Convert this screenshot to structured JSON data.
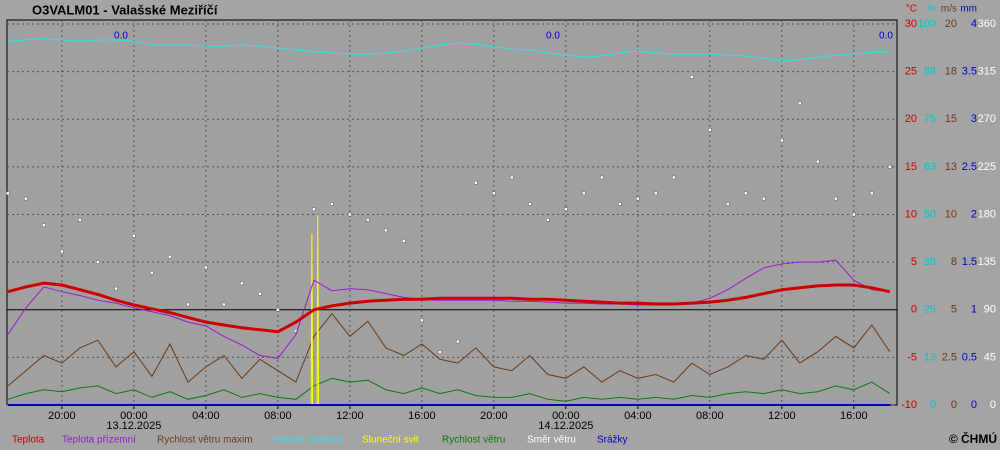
{
  "chart_data": {
    "type": "line",
    "title": "O3VALM01 - Valašské Meziříčí",
    "credit": "© ČHMÚ",
    "annotations": [
      "0.0",
      "0.0",
      "0.0"
    ],
    "grid": true,
    "xlim": [
      -7.05,
      42.4
    ],
    "xticks": [
      {
        "value": -4,
        "label": "20:00"
      },
      {
        "value": 0,
        "label": "00:00"
      },
      {
        "value": 4,
        "label": "04:00"
      },
      {
        "value": 8,
        "label": "08:00"
      },
      {
        "value": 12,
        "label": "12:00"
      },
      {
        "value": 16,
        "label": "16:00"
      },
      {
        "value": 20,
        "label": "20:00"
      },
      {
        "value": 24,
        "label": "00:00"
      },
      {
        "value": 28,
        "label": "04:00"
      },
      {
        "value": 32,
        "label": "08:00"
      },
      {
        "value": 36,
        "label": "12:00"
      },
      {
        "value": 40,
        "label": "16:00"
      }
    ],
    "xdates": [
      {
        "value": 0,
        "label": "13.12.2025"
      },
      {
        "value": 24,
        "label": "14.12.2025"
      }
    ],
    "ylim": [
      -10,
      30
    ],
    "y_label": "°C",
    "y_color": "#cc0000",
    "yticks": [
      -10,
      -5,
      0,
      5,
      10,
      15,
      20,
      25,
      30
    ],
    "y2lim": [
      0,
      100
    ],
    "y2_label": "%",
    "y2_color": "#00c8c8",
    "y2ticks": [
      0,
      {
        "value": 12.5,
        "label": "13"
      },
      25,
      {
        "value": 37.5,
        "label": "38"
      },
      50,
      {
        "value": 62.5,
        "label": "63"
      },
      75,
      {
        "value": 87.5,
        "label": "88"
      },
      100
    ],
    "y3lim": [
      0,
      20
    ],
    "y3_label": "m/s",
    "y3_color": "#6b3a1a",
    "y3ticks": [
      0,
      2.5,
      5,
      {
        "value": 7.5,
        "label": "8"
      },
      10,
      {
        "value": 12.5,
        "label": "13"
      },
      15,
      {
        "value": 17.5,
        "label": "18"
      },
      20
    ],
    "y4lim": [
      0,
      4
    ],
    "y4_label": "mm",
    "y4_color": "#0000cc",
    "y4ticks": [
      0,
      0.5,
      1,
      1.5,
      2,
      2.5,
      3,
      3.5,
      4
    ],
    "y5lim": [
      0,
      360
    ],
    "y5_color": "#ffffff",
    "y5ticks": [
      0,
      45,
      90,
      135,
      180,
      225,
      270,
      315,
      360
    ],
    "x": [
      -7,
      -6,
      -5,
      -4,
      -3,
      -2,
      -1,
      0,
      1,
      2,
      3,
      4,
      5,
      6,
      7,
      8,
      9,
      10,
      11,
      12,
      13,
      14,
      15,
      16,
      17,
      18,
      19,
      20,
      21,
      22,
      23,
      24,
      25,
      26,
      27,
      28,
      29,
      30,
      31,
      32,
      33,
      34,
      35,
      36,
      37,
      38,
      39,
      40,
      41,
      42
    ],
    "series": [
      {
        "name": "Teplota",
        "color": "#cc0000",
        "axis": "y",
        "width": 3,
        "values": [
          1.9,
          2.4,
          2.8,
          2.6,
          2.1,
          1.6,
          1.0,
          0.5,
          0.1,
          -0.3,
          -0.8,
          -1.3,
          -1.6,
          -1.9,
          -2.1,
          -2.3,
          -1.3,
          0.0,
          0.4,
          0.7,
          0.9,
          1.0,
          1.1,
          1.1,
          1.2,
          1.2,
          1.2,
          1.2,
          1.2,
          1.1,
          1.1,
          1.0,
          0.9,
          0.8,
          0.7,
          0.7,
          0.6,
          0.6,
          0.7,
          0.8,
          1.0,
          1.3,
          1.7,
          2.1,
          2.3,
          2.5,
          2.6,
          2.6,
          2.3,
          1.9
        ]
      },
      {
        "name": "Teplota přízemní",
        "color": "#9a1ad0",
        "axis": "y",
        "width": 1,
        "values": [
          -2.6,
          0.2,
          2.4,
          1.9,
          1.5,
          1.0,
          0.7,
          0.2,
          -0.2,
          -0.6,
          -1.3,
          -1.7,
          -2.8,
          -3.7,
          -4.8,
          -5.1,
          -2.6,
          3.1,
          2.0,
          2.2,
          2.1,
          1.7,
          1.3,
          1.1,
          1.0,
          1.0,
          1.0,
          1.0,
          0.9,
          0.9,
          0.8,
          0.7,
          0.7,
          0.6,
          0.6,
          0.5,
          0.5,
          0.6,
          0.7,
          1.2,
          2.1,
          3.3,
          4.4,
          4.8,
          5.0,
          5.0,
          5.2,
          3.1,
          2.1,
          1.9
        ]
      },
      {
        "name": "Rychlost větru maxim",
        "color": "#6b3a1a",
        "axis": "y3",
        "width": 1,
        "values": [
          1.0,
          1.8,
          2.6,
          2.2,
          3.0,
          3.4,
          2.0,
          2.8,
          1.5,
          3.2,
          1.2,
          2.0,
          2.6,
          1.4,
          2.4,
          1.8,
          1.2,
          3.6,
          4.8,
          3.6,
          4.4,
          3.0,
          2.6,
          3.2,
          2.4,
          2.2,
          3.0,
          2.0,
          1.8,
          2.6,
          1.6,
          1.4,
          2.0,
          1.2,
          1.8,
          1.4,
          1.6,
          1.2,
          2.2,
          1.6,
          2.0,
          2.6,
          2.4,
          3.4,
          2.2,
          2.8,
          3.6,
          3.0,
          4.2,
          2.8
        ]
      },
      {
        "name": "Vlhkost vzduchu",
        "color": "#30e0e0",
        "axis": "y2",
        "width": 1,
        "values": [
          95.5,
          95.8,
          96.2,
          95.8,
          95.5,
          95.8,
          95.8,
          95.5,
          94.5,
          94.5,
          94.5,
          94.2,
          94.2,
          94.5,
          94.2,
          93.7,
          93.2,
          92.7,
          92.4,
          92.1,
          92.1,
          92.4,
          92.9,
          93.7,
          94.5,
          95.0,
          94.7,
          94.0,
          93.4,
          93.2,
          92.4,
          91.8,
          91.3,
          91.6,
          92.4,
          92.9,
          92.4,
          92.1,
          92.1,
          92.1,
          91.8,
          91.6,
          91.0,
          90.3,
          90.6,
          91.3,
          91.8,
          92.1,
          92.6,
          92.6
        ]
      },
      {
        "name": "Sluneční svit",
        "color": "#ffff00",
        "axis": "y3",
        "width": 1,
        "x": [
          9.85,
          9.89,
          9.93,
          10.18,
          10.22,
          10.26
        ],
        "values": [
          0,
          9,
          0,
          0,
          10,
          0
        ]
      },
      {
        "name": "Rychlost větru",
        "color": "#0a7a0a",
        "axis": "y3",
        "width": 1,
        "values": [
          0.3,
          0.6,
          0.8,
          0.7,
          0.9,
          1.0,
          0.6,
          0.8,
          0.4,
          0.7,
          0.3,
          0.5,
          0.8,
          0.4,
          0.6,
          0.4,
          0.3,
          1.0,
          1.4,
          1.2,
          1.3,
          0.8,
          0.6,
          0.9,
          0.6,
          0.8,
          0.5,
          0.4,
          0.4,
          0.6,
          0.3,
          0.2,
          0.4,
          0.3,
          0.4,
          0.3,
          0.4,
          0.3,
          0.5,
          0.4,
          0.6,
          0.7,
          0.6,
          0.8,
          0.6,
          0.7,
          1.0,
          0.8,
          1.2,
          0.6
        ]
      },
      {
        "name": "Směr větru",
        "color": "#ffffff",
        "axis": "y5",
        "style": "points",
        "values": [
          200,
          195,
          170,
          145,
          175,
          135,
          110,
          160,
          125,
          140,
          95,
          130,
          95,
          115,
          105,
          90,
          70,
          185,
          190,
          180,
          175,
          165,
          155,
          80,
          50,
          60,
          210,
          200,
          215,
          190,
          175,
          185,
          200,
          215,
          190,
          195,
          200,
          215,
          310,
          260,
          190,
          200,
          195,
          250,
          285,
          230,
          195,
          180,
          200,
          225
        ]
      },
      {
        "name": "Srážky",
        "color": "#0000cc",
        "axis": "y4",
        "width": 2,
        "values": [
          0,
          0,
          0,
          0,
          0,
          0,
          0,
          0,
          0,
          0,
          0,
          0,
          0,
          0,
          0,
          0,
          0,
          0,
          0,
          0,
          0,
          0,
          0,
          0,
          0,
          0,
          0,
          0,
          0,
          0,
          0,
          0,
          0,
          0,
          0,
          0,
          0,
          0,
          0,
          0,
          0,
          0,
          0,
          0,
          0,
          0,
          0,
          0,
          0,
          0
        ]
      }
    ]
  }
}
